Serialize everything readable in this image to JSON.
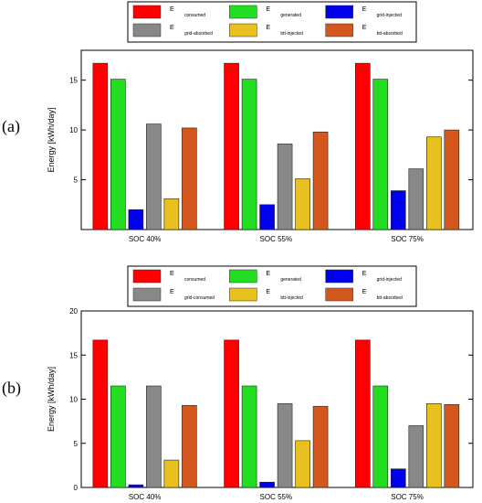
{
  "chart_data": [
    {
      "type": "bar",
      "panel_label": "(a)",
      "categories": [
        "SOC 40%",
        "SOC 55%",
        "SOC 75%"
      ],
      "series": [
        {
          "name_main": "E",
          "name_sub": "consumed",
          "color": "#ff0000",
          "values": [
            16.7,
            16.7,
            16.7
          ]
        },
        {
          "name_main": "E",
          "name_sub": "generated",
          "color": "#22dd22",
          "values": [
            15.1,
            15.1,
            15.1
          ]
        },
        {
          "name_main": "E",
          "name_sub": "grid-injected",
          "color": "#0000ee",
          "values": [
            2.0,
            2.5,
            3.9
          ]
        },
        {
          "name_main": "E",
          "name_sub": "grid-absorbed",
          "color": "#888888",
          "values": [
            10.6,
            8.6,
            6.1
          ]
        },
        {
          "name_main": "E",
          "name_sub": "btt-injected",
          "color": "#e8c020",
          "values": [
            3.1,
            5.1,
            9.3
          ]
        },
        {
          "name_main": "E",
          "name_sub": "btt-absorbed",
          "color": "#d4581e",
          "values": [
            10.2,
            9.8,
            10.0
          ]
        }
      ],
      "ylabel": "Energy [kWh/day]",
      "ylim": [
        0,
        18
      ],
      "yticks": [
        "5",
        "10",
        "15"
      ],
      "ytick_values": [
        5,
        10,
        15
      ],
      "grid": false,
      "legend_placement": "top"
    },
    {
      "type": "bar",
      "panel_label": "(b)",
      "categories": [
        "SOC 40%",
        "SOC 55%",
        "SOC 75%"
      ],
      "series": [
        {
          "name_main": "E",
          "name_sub": "consumed",
          "color": "#ff0000",
          "values": [
            16.7,
            16.7,
            16.7
          ]
        },
        {
          "name_main": "E",
          "name_sub": "generated",
          "color": "#22dd22",
          "values": [
            11.5,
            11.5,
            11.5
          ]
        },
        {
          "name_main": "E",
          "name_sub": "grid-injected",
          "color": "#0000ee",
          "values": [
            0.3,
            0.6,
            2.1
          ]
        },
        {
          "name_main": "E",
          "name_sub": "grid-consumed",
          "color": "#888888",
          "values": [
            11.5,
            9.5,
            7.0
          ]
        },
        {
          "name_main": "E",
          "name_sub": "btt-injected",
          "color": "#e8c020",
          "values": [
            3.1,
            5.3,
            9.5
          ]
        },
        {
          "name_main": "E",
          "name_sub": "btt-absorbed",
          "color": "#d4581e",
          "values": [
            9.3,
            9.2,
            9.4
          ]
        }
      ],
      "ylabel": "Energy [kWh/day]",
      "ylim": [
        0,
        20
      ],
      "yticks": [
        "0",
        "5",
        "10",
        "15",
        "20"
      ],
      "ytick_values": [
        0,
        5,
        10,
        15,
        20
      ],
      "grid": false,
      "legend_placement": "top"
    }
  ]
}
